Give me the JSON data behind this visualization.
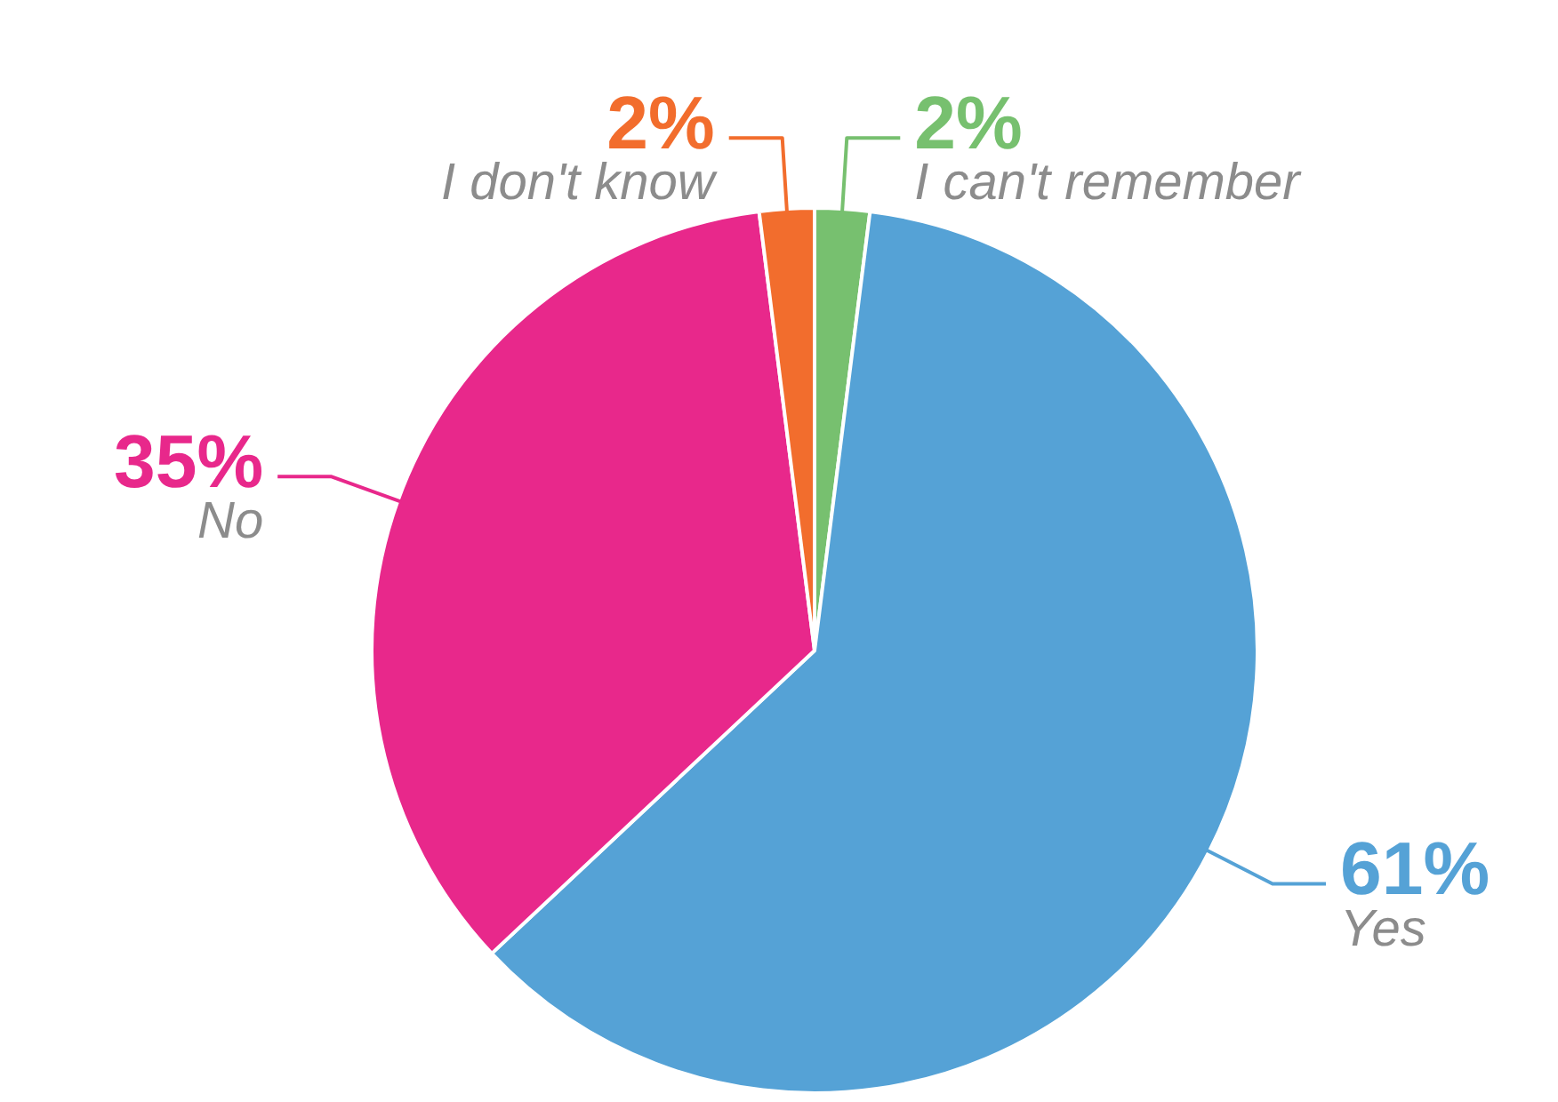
{
  "chart_data": {
    "type": "pie",
    "categories": [
      "I can't remember",
      "Yes",
      "No",
      "I don't know"
    ],
    "values": [
      2,
      61,
      35,
      2
    ],
    "colors": [
      "#77c06f",
      "#55a2d6",
      "#e8288b",
      "#f26d2d"
    ],
    "value_labels": [
      "2%",
      "61%",
      "35%",
      "2%"
    ],
    "legend": false
  }
}
